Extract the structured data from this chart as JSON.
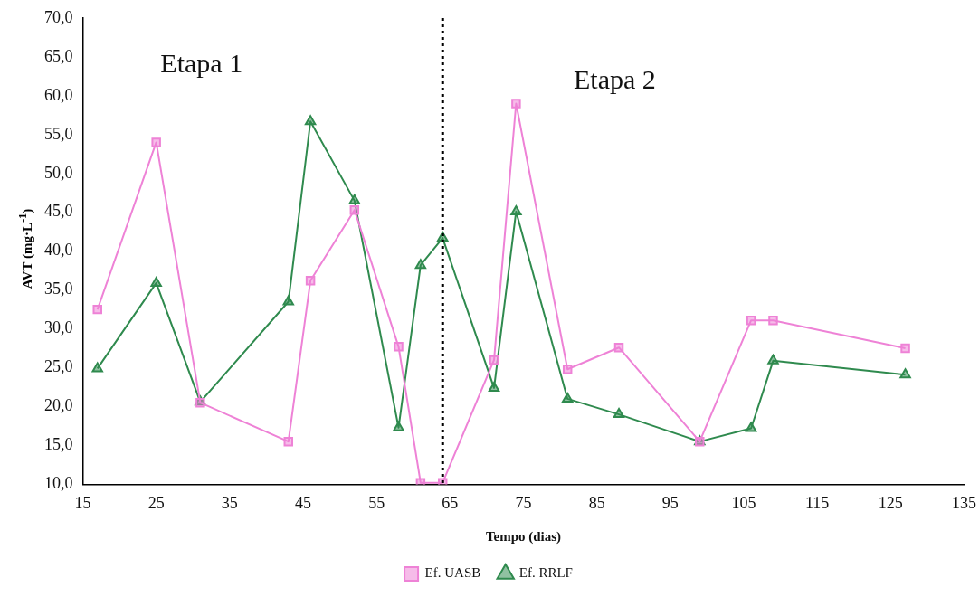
{
  "chart_data": {
    "type": "line",
    "xlabel": "Tempo (dias)",
    "ylabel": "AVT (mg·L$^{-1}$)",
    "x": [
      17,
      25,
      31,
      43,
      46,
      52,
      58,
      61,
      64,
      71,
      74,
      81,
      88,
      99,
      106,
      109,
      127
    ],
    "series": [
      {
        "name": "Ef. UASB",
        "color": "#ee82d6",
        "marker": "square",
        "values": [
          32.5,
          54.0,
          20.5,
          15.5,
          36.2,
          45.3,
          27.7,
          10.2,
          10.2,
          26.0,
          59.0,
          24.8,
          27.6,
          15.5,
          31.1,
          31.1,
          27.5
        ]
      },
      {
        "name": "Ef. RRLF",
        "color": "#2f8a4e",
        "marker": "triangle",
        "values": [
          24.9,
          35.9,
          20.6,
          33.5,
          56.7,
          46.5,
          17.3,
          38.2,
          41.7,
          22.4,
          45.1,
          21.0,
          19.0,
          15.5,
          17.2,
          25.9,
          24.1
        ]
      }
    ],
    "xlim": [
      15,
      135
    ],
    "xticks": [
      15,
      25,
      35,
      45,
      55,
      65,
      75,
      85,
      95,
      105,
      115,
      125,
      135
    ],
    "ylim": [
      10,
      70
    ],
    "yticks": [
      {
        "value": 10,
        "label": "10,0"
      },
      {
        "value": 15,
        "label": "15,0"
      },
      {
        "value": 20,
        "label": "20,0"
      },
      {
        "value": 25,
        "label": "25,0"
      },
      {
        "value": 30,
        "label": "30,0"
      },
      {
        "value": 35,
        "label": "35,0"
      },
      {
        "value": 40,
        "label": "40,0"
      },
      {
        "value": 45,
        "label": "45,0"
      },
      {
        "value": 50,
        "label": "50,0"
      },
      {
        "value": 55,
        "label": "55,0"
      },
      {
        "value": 60,
        "label": "60,0"
      },
      {
        "value": 65,
        "label": "65,0"
      },
      {
        "value": 70,
        "label": "70,0"
      }
    ],
    "ref_lines": [
      {
        "axis": "x",
        "value": 64,
        "color": "#000000",
        "line_style": "dotted"
      }
    ],
    "annotations": [
      "Etapa 1",
      "Etapa 2"
    ],
    "grid": false,
    "legend": "bottom",
    "line_style": "solid"
  }
}
